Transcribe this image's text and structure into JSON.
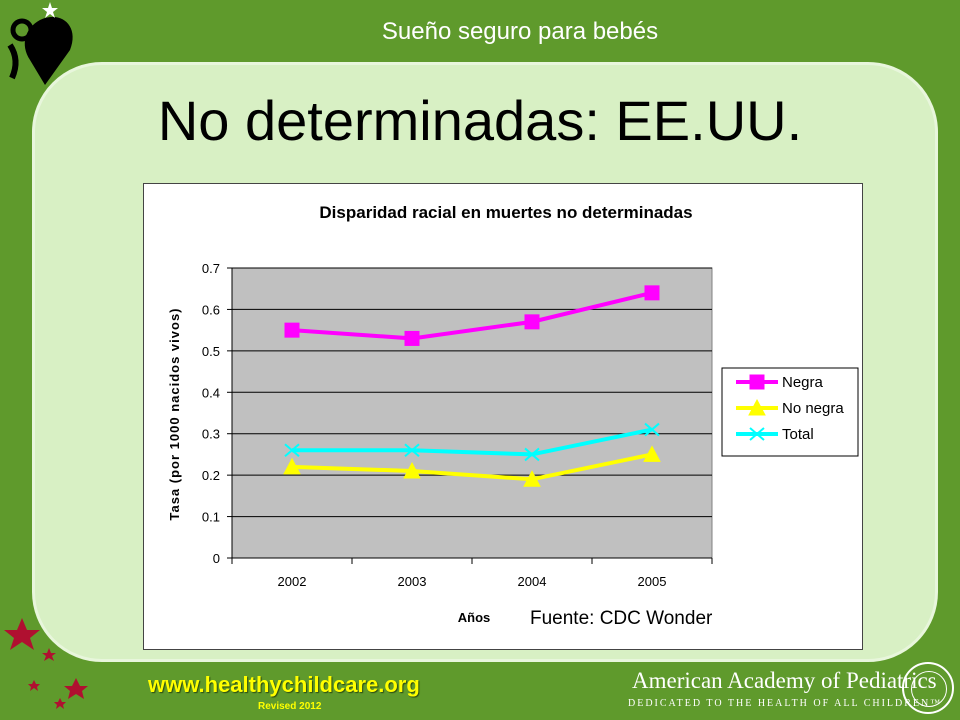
{
  "header": {
    "topic": "Sueño seguro para bebés"
  },
  "slide": {
    "title": "No determinadas: EE.UU."
  },
  "footer": {
    "url": "www.healthychildcare.org",
    "revised": "Revised 2012",
    "org_name": "American Academy of Pediatrics",
    "org_tagline": "DEDICATED TO THE HEALTH OF ALL CHILDREN™"
  },
  "colors": {
    "background": "#5f9a2c",
    "panel": "#d8f0c4",
    "plot_area": "#c0c0c0",
    "negra": "#ff00ff",
    "no_negra": "#ffff00",
    "total": "#00ffff"
  },
  "chart_data": {
    "type": "line",
    "title": "Disparidad racial en muertes no determinadas",
    "xlabel": "Años",
    "ylabel": "Tasa (por 1000 nacidos vivos)",
    "categories": [
      "2002",
      "2003",
      "2004",
      "2005"
    ],
    "ylim": [
      0,
      0.7
    ],
    "yticks": [
      "0",
      "0.1",
      "0.2",
      "0.3",
      "0.4",
      "0.5",
      "0.6",
      "0.7"
    ],
    "grid": true,
    "legend": "right",
    "annotation": "Fuente: CDC Wonder",
    "series": [
      {
        "name": "Negra",
        "values": [
          0.55,
          0.53,
          0.57,
          0.64
        ],
        "marker": "square",
        "color": "#ff00ff"
      },
      {
        "name": "No negra",
        "values": [
          0.22,
          0.21,
          0.19,
          0.25
        ],
        "marker": "triangle",
        "color": "#ffff00"
      },
      {
        "name": "Total",
        "values": [
          0.26,
          0.26,
          0.25,
          0.31
        ],
        "marker": "x",
        "color": "#00ffff"
      }
    ]
  }
}
